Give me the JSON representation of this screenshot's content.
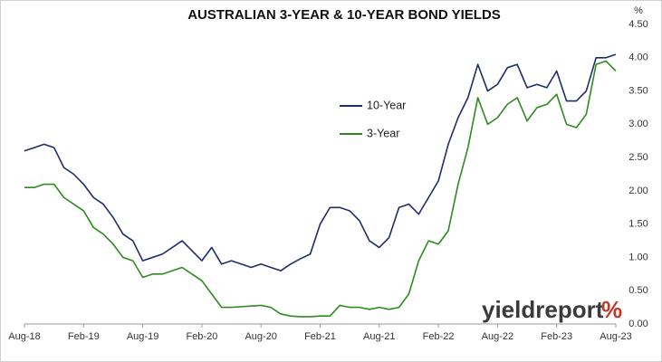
{
  "chart_data": {
    "type": "line",
    "title": "AUSTRALIAN 3-YEAR & 10-YEAR BOND YIELDS",
    "y_unit": "%",
    "logo": {
      "text": "yieldreport",
      "symbol": "%"
    },
    "categories": [
      "Aug-18",
      null,
      null,
      null,
      null,
      null,
      "Feb-19",
      null,
      null,
      null,
      null,
      null,
      "Aug-19",
      null,
      null,
      null,
      null,
      null,
      "Feb-20",
      null,
      null,
      null,
      null,
      null,
      "Aug-20",
      null,
      null,
      null,
      null,
      null,
      "Feb-21",
      null,
      null,
      null,
      null,
      null,
      "Aug-21",
      null,
      null,
      null,
      null,
      null,
      "Feb-22",
      null,
      null,
      null,
      null,
      null,
      "Aug-22",
      null,
      null,
      null,
      null,
      null,
      "Feb-23",
      null,
      null,
      null,
      null,
      null,
      "Aug-23"
    ],
    "series": [
      {
        "name": "10-Year",
        "color": "#1f2d6b",
        "values": [
          2.6,
          2.65,
          2.7,
          2.65,
          2.35,
          2.25,
          2.1,
          1.9,
          1.8,
          1.6,
          1.35,
          1.25,
          0.95,
          1.0,
          1.05,
          1.15,
          1.25,
          1.1,
          0.95,
          1.15,
          0.9,
          0.95,
          0.9,
          0.85,
          0.9,
          0.85,
          0.8,
          0.9,
          0.98,
          1.05,
          1.5,
          1.75,
          1.75,
          1.7,
          1.55,
          1.25,
          1.15,
          1.3,
          1.75,
          1.8,
          1.65,
          1.9,
          2.15,
          2.7,
          3.1,
          3.4,
          3.9,
          3.5,
          3.6,
          3.85,
          3.9,
          3.55,
          3.6,
          3.55,
          3.8,
          3.35,
          3.35,
          3.5,
          4.0,
          4.0,
          4.05
        ]
      },
      {
        "name": "3-Year",
        "color": "#2e8b20",
        "values": [
          2.05,
          2.05,
          2.1,
          2.1,
          1.9,
          1.8,
          1.7,
          1.45,
          1.35,
          1.2,
          1.0,
          0.95,
          0.7,
          0.75,
          0.75,
          0.8,
          0.85,
          0.75,
          0.65,
          0.45,
          0.25,
          0.25,
          0.26,
          0.27,
          0.28,
          0.25,
          0.15,
          0.12,
          0.11,
          0.11,
          0.12,
          0.12,
          0.28,
          0.25,
          0.25,
          0.22,
          0.25,
          0.22,
          0.25,
          0.45,
          0.95,
          1.25,
          1.2,
          1.4,
          2.1,
          2.65,
          3.4,
          3.0,
          3.1,
          3.3,
          3.4,
          3.05,
          3.25,
          3.3,
          3.45,
          3.0,
          2.95,
          3.15,
          3.9,
          3.95,
          3.8
        ]
      }
    ],
    "ylim": [
      0,
      4.5
    ],
    "yticks": [
      {
        "value": 0,
        "label": "0.00"
      },
      {
        "value": 0.5,
        "label": "0.50"
      },
      {
        "value": 1,
        "label": "1.00"
      },
      {
        "value": 1.5,
        "label": "1.50"
      },
      {
        "value": 2,
        "label": "2.00"
      },
      {
        "value": 2.5,
        "label": "2.50"
      },
      {
        "value": 3,
        "label": "3.00"
      },
      {
        "value": 3.5,
        "label": "3.50"
      },
      {
        "value": 4,
        "label": "4.00"
      },
      {
        "value": 4.5,
        "label": "4.50"
      }
    ],
    "grid": false
  }
}
